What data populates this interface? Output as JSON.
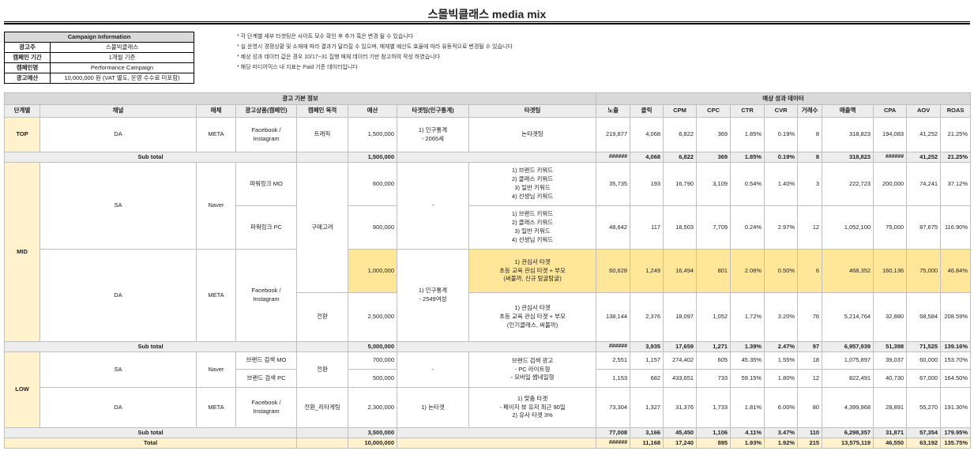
{
  "title": "스몰빅클래스 media mix",
  "campaign_info": {
    "header": "Campaign Information",
    "rows": [
      {
        "k": "광고주",
        "v": "스몰빅클래스"
      },
      {
        "k": "캠페인 기간",
        "v": "1개월 기준"
      },
      {
        "k": "캠페인명",
        "v": "Performance Campaign"
      },
      {
        "k": "광고예산",
        "v": "10,000,000 원 (VAT 별도, 운영 수수료 미포함)"
      }
    ]
  },
  "notes": [
    "* 각 단계별 세부 타겟팅은 사이트 모수 확인 후 추가 혹은 변경 될 수 있습니다",
    "* 실 운영시 경쟁상황 및 소재에 따라 결과가 달라질 수 있으며, 매체별 예산도 효율에 따라 유동적으로 변경될 수 있습니다",
    "* 예상 성과 데이터 값은 경우 10/17~31 집행 매체 데이터 기반 참고하여 작성 하였습니다",
    "* 해당 미디어믹스 내 지표는 Paid 기준 데이터입니다"
  ],
  "table": {
    "group_basic": "광고 기본 정보",
    "group_perf": "예상 성과 데이터",
    "columns": [
      "단계별",
      "채널",
      "매체",
      "광고상품(캠페인)",
      "캠페인 목적",
      "예산",
      "타겟팅(인구통계)",
      "타겟팅",
      "노출",
      "클릭",
      "CPM",
      "CPC",
      "CTR",
      "CVR",
      "거래수",
      "매출액",
      "CPA",
      "AOV",
      "ROAS"
    ],
    "top": {
      "stage": "TOP",
      "channel": "DA",
      "media": "META",
      "product": "Facebook / Instagram",
      "objective": "트래픽",
      "budget": "1,500,000",
      "demo": [
        "1) 인구통계",
        "- 2065세"
      ],
      "targeting": "논타겟팅",
      "m": [
        "219,877",
        "4,068",
        "6,822",
        "369",
        "1.85%",
        "0.19%",
        "8",
        "318,823",
        "194,083",
        "41,252",
        "21.25%"
      ]
    },
    "top_sub": {
      "label": "Sub total",
      "budget": "1,500,000",
      "m": [
        "######",
        "4,068",
        "6,822",
        "369",
        "1.85%",
        "0.19%",
        "8",
        "318,823",
        "######",
        "41,252",
        "21.25%"
      ]
    },
    "mid": {
      "stage": "MID",
      "sa_channel": "SA",
      "sa_media": "Naver",
      "objective": "구매고려",
      "dash": "-",
      "da_channel": "DA",
      "da_media": "META",
      "da_product": "Facebook / Instagram",
      "da_demo": [
        "1) 인구통계",
        "- 2549여성"
      ],
      "rows": [
        {
          "product": "파워링크 MO",
          "budget": "600,000",
          "targeting": [
            "1) 브랜드 키워드",
            "2) 클래스 키워드",
            "3) 일반 키워드",
            "4) 선생님 키워드"
          ],
          "m": [
            "35,735",
            "193",
            "16,790",
            "3,109",
            "0.54%",
            "1.40%",
            "3",
            "222,723",
            "200,000",
            "74,241",
            "37.12%"
          ]
        },
        {
          "product": "파워링크 PC",
          "budget": "900,000",
          "targeting": [
            "1) 브랜드 키워드",
            "2) 클래스 키워드",
            "3) 일반 키워드",
            "4) 선생님 키워드"
          ],
          "m": [
            "48,642",
            "117",
            "18,503",
            "7,709",
            "0.24%",
            "2.97%",
            "12",
            "1,052,100",
            "75,000",
            "87,675",
            "116.90%"
          ]
        },
        {
          "budget": "1,000,000",
          "targeting": [
            "1) 관심사 타겟",
            "초등 교육 관심 타겟 + 부모",
            "(써볼까, 신규 탐굴탐굴)"
          ],
          "m": [
            "60,628",
            "1,249",
            "16,494",
            "801",
            "2.06%",
            "0.50%",
            "6",
            "468,352",
            "160,136",
            "75,000",
            "46.84%"
          ]
        },
        {
          "objective": "전환",
          "budget": "2,500,000",
          "targeting": [
            "1) 관심사 타겟",
            "초등 교육 관심 타겟 + 부모",
            "(인기클래스, 써볼까)"
          ],
          "m": [
            "138,144",
            "2,376",
            "18,097",
            "1,052",
            "1.72%",
            "3.20%",
            "76",
            "5,214,764",
            "32,880",
            "68,584",
            "208.59%"
          ]
        }
      ]
    },
    "mid_sub": {
      "label": "Sub total",
      "budget": "5,000,000",
      "m": [
        "######",
        "3,935",
        "17,659",
        "1,271",
        "1.39%",
        "2.47%",
        "97",
        "6,957,939",
        "51,398",
        "71,525",
        "139.16%"
      ]
    },
    "low": {
      "stage": "LOW",
      "sa_channel": "SA",
      "sa_media": "Naver",
      "sa_objective": "전환",
      "dash": "-",
      "sa_targeting": [
        "브랜드 검색 광고",
        "- PC 라이트형",
        "- 모바일 썸네일형"
      ],
      "rows": [
        {
          "product": "브랜드 검색 MO",
          "budget": "700,000",
          "m": [
            "2,551",
            "1,157",
            "274,402",
            "605",
            "45.35%",
            "1.55%",
            "18",
            "1,075,897",
            "39,037",
            "60,000",
            "153.70%"
          ]
        },
        {
          "product": "브랜드 검색 PC",
          "budget": "500,000",
          "m": [
            "1,153",
            "682",
            "433,651",
            "733",
            "59.15%",
            "1.80%",
            "12",
            "822,491",
            "40,730",
            "67,000",
            "164.50%"
          ]
        },
        {
          "channel": "DA",
          "media": "META",
          "product": "Facebook / Instagram",
          "objective": "전환_리타게팅",
          "budget": "2,300,000",
          "demo": "1) 논타겟",
          "targeting": [
            "1) 맞춤 타겟",
            "- 페이지 뷰 유저 최근 90일",
            "2) 유사 타겟 3%"
          ],
          "m": [
            "73,304",
            "1,327",
            "31,376",
            "1,733",
            "1.81%",
            "6.00%",
            "80",
            "4,399,968",
            "28,891",
            "55,270",
            "191.30%"
          ]
        }
      ]
    },
    "low_sub": {
      "label": "Sub total",
      "budget": "3,500,000",
      "m": [
        "77,008",
        "3,166",
        "45,450",
        "1,106",
        "4.11%",
        "3.47%",
        "110",
        "6,298,357",
        "31,871",
        "57,354",
        "179.95%"
      ]
    },
    "total": {
      "label": "Total",
      "budget": "10,000,000",
      "m": [
        "######",
        "11,168",
        "17,240",
        "895",
        "1.93%",
        "1.92%",
        "215",
        "13,575,119",
        "46,550",
        "63,192",
        "135.75%"
      ]
    }
  },
  "colors": {
    "header": "#d9d9d9",
    "stage": "#fff2cc",
    "subtotal": "#ededed",
    "highlight": "#ffe699",
    "total": "#fff2cc"
  }
}
